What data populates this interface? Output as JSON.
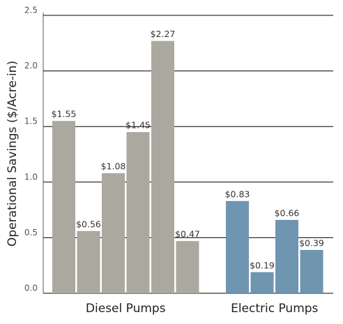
{
  "chart_data": {
    "type": "bar",
    "y_label": "Operational Savings ($/Acre-in)",
    "series": [
      {
        "name": "Diesel Pumps",
        "color": "#aba89f",
        "values": [
          1.55,
          0.56,
          1.08,
          1.45,
          2.27,
          0.47
        ],
        "value_labels": [
          "$1.55",
          "$0.56",
          "$1.08",
          "$1.45",
          "$2.27",
          "$0.47"
        ]
      },
      {
        "name": "Electric Pumps",
        "color": "#6f95b0",
        "values": [
          0.83,
          0.19,
          0.66,
          0.39
        ],
        "value_labels": [
          "$0.83",
          "$0.19",
          "$0.66",
          "$0.39"
        ]
      }
    ],
    "ylim": [
      0,
      2.5
    ],
    "yticks": [
      {
        "value": 0,
        "label": "0.0"
      },
      0.5,
      {
        "value": 1,
        "label": "1.0"
      },
      1.5,
      {
        "value": 2,
        "label": "2.0"
      },
      2.5
    ],
    "grid": true
  }
}
